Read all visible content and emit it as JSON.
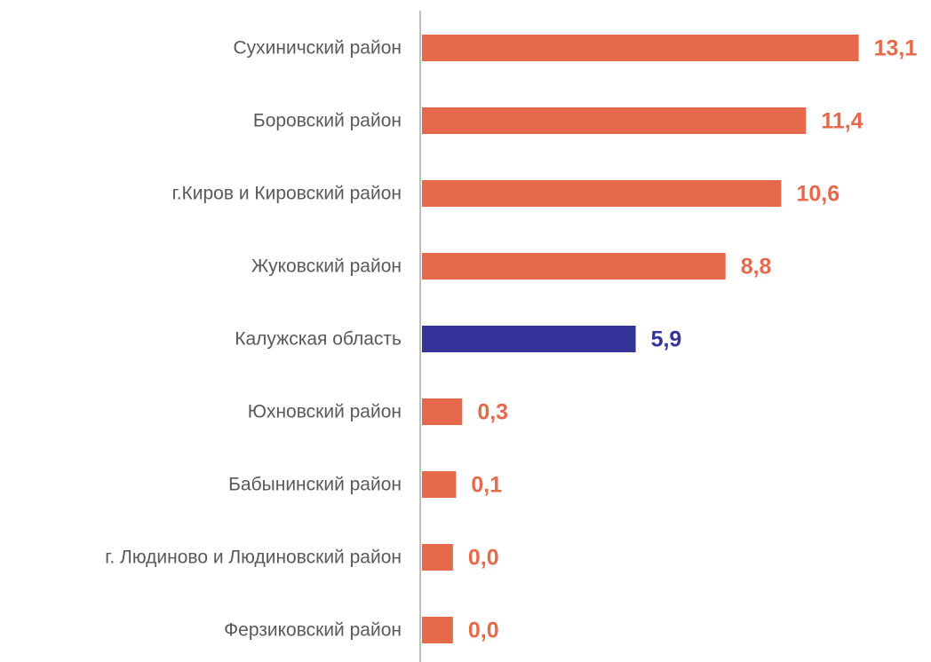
{
  "chart_data": {
    "type": "barh",
    "categories": [
      "Сухиничский район",
      "Боровский район",
      "г.Киров и Кировский район",
      "Жуковский район",
      "Калужская область",
      "Юхновский район",
      "Бабынинский район",
      "г. Людиново и Людиновский район",
      "Ферзиковский район"
    ],
    "values": [
      13.1,
      11.4,
      10.6,
      8.8,
      5.9,
      0.3,
      0.1,
      0.0,
      0.0
    ],
    "value_labels": [
      "13,1",
      "11,4",
      "10,6",
      "8,8",
      "5,9",
      "0,3",
      "0,1",
      "0,0",
      "0,0"
    ],
    "colors": [
      "#e5694a",
      "#e5694a",
      "#e5694a",
      "#e5694a",
      "#333399",
      "#e5694a",
      "#e5694a",
      "#e5694a",
      "#e5694a"
    ],
    "xlim": [
      -1,
      14
    ]
  }
}
